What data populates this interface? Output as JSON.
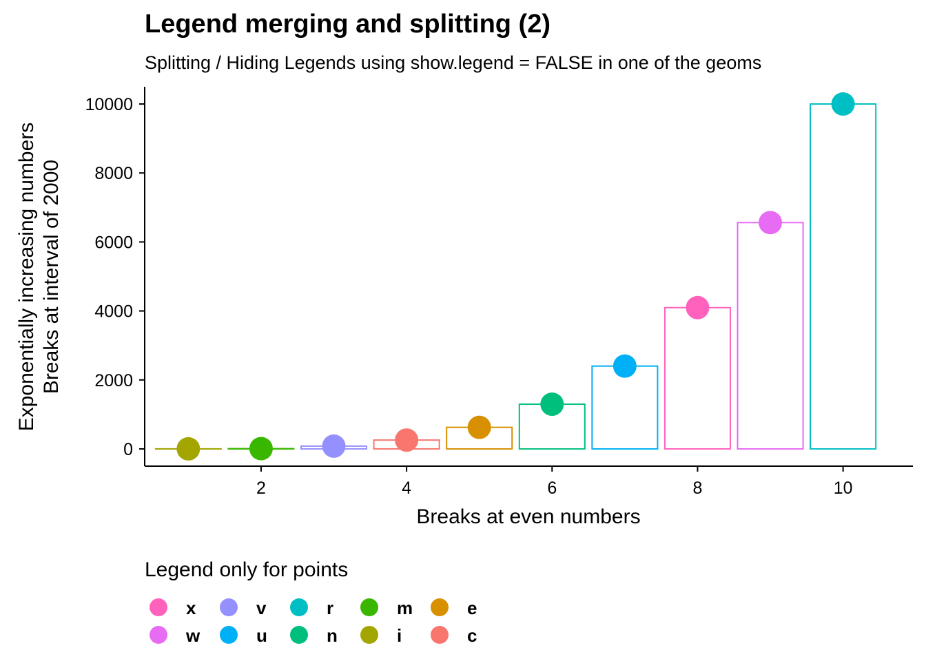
{
  "chart_data": {
    "type": "bar",
    "title": "Legend merging and splitting (2)",
    "subtitle": "Splitting / Hiding Legends using show.legend = FALSE in one of the geoms",
    "xlabel": "Breaks at even numbers",
    "ylabel_lines": [
      "Exponentially increasing numbers",
      "Breaks at interval of 2000"
    ],
    "x": [
      1,
      2,
      3,
      4,
      5,
      6,
      7,
      8,
      9,
      10
    ],
    "values": [
      1,
      8,
      81,
      256,
      625,
      1296,
      2401,
      4096,
      6561,
      10000
    ],
    "labels": [
      "i",
      "m",
      "v",
      "c",
      "e",
      "n",
      "u",
      "x",
      "w",
      "r"
    ],
    "colors": [
      "#A3A500",
      "#39B600",
      "#9590FF",
      "#F8766D",
      "#D89000",
      "#00BF7D",
      "#00B0F6",
      "#FF62BC",
      "#E76BF3",
      "#00BFC4"
    ],
    "x_ticks": [
      2,
      4,
      6,
      8,
      10
    ],
    "y_ticks": [
      0,
      2000,
      4000,
      6000,
      8000,
      10000
    ],
    "xlim": [
      0.4,
      10.96
    ],
    "ylim": [
      -500,
      10500
    ],
    "grid": false,
    "legend": {
      "title": "Legend only for points",
      "placement": "bottom",
      "entries": [
        {
          "label": "x",
          "color": "#FF62BC"
        },
        {
          "label": "w",
          "color": "#E76BF3"
        },
        {
          "label": "v",
          "color": "#9590FF"
        },
        {
          "label": "u",
          "color": "#00B0F6"
        },
        {
          "label": "r",
          "color": "#00BFC4"
        },
        {
          "label": "n",
          "color": "#00BF7D"
        },
        {
          "label": "m",
          "color": "#39B600"
        },
        {
          "label": "i",
          "color": "#A3A500"
        },
        {
          "label": "e",
          "color": "#D89000"
        },
        {
          "label": "c",
          "color": "#F8766D"
        }
      ]
    }
  }
}
